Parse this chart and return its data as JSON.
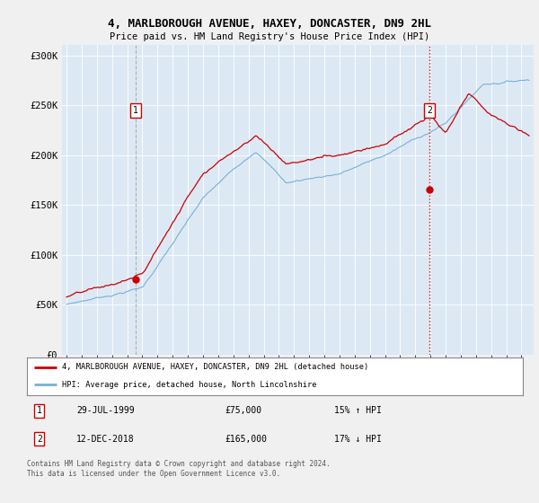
{
  "title": "4, MARLBOROUGH AVENUE, HAXEY, DONCASTER, DN9 2HL",
  "subtitle": "Price paid vs. HM Land Registry's House Price Index (HPI)",
  "legend_line1": "4, MARLBOROUGH AVENUE, HAXEY, DONCASTER, DN9 2HL (detached house)",
  "legend_line2": "HPI: Average price, detached house, North Lincolnshire",
  "annotation1_label": "1",
  "annotation1_date": "29-JUL-1999",
  "annotation1_price": "£75,000",
  "annotation1_hpi": "15% ↑ HPI",
  "annotation2_label": "2",
  "annotation2_date": "12-DEC-2018",
  "annotation2_price": "£165,000",
  "annotation2_hpi": "17% ↓ HPI",
  "footer": "Contains HM Land Registry data © Crown copyright and database right 2024.\nThis data is licensed under the Open Government Licence v3.0.",
  "hpi_color": "#7bafd4",
  "price_color": "#cc0000",
  "background_color": "#f0f0f0",
  "plot_bg_color": "#dce9f5",
  "plot_bg_color2": "#ffffff",
  "ylim": [
    0,
    310000
  ],
  "yticks": [
    0,
    50000,
    100000,
    150000,
    200000,
    250000,
    300000
  ],
  "ytick_labels": [
    "£0",
    "£50K",
    "£100K",
    "£150K",
    "£200K",
    "£250K",
    "£300K"
  ],
  "xlim_start": 1994.7,
  "xlim_end": 2025.8,
  "sale1_x": 1999.55,
  "sale1_y": 75000,
  "sale2_x": 2018.92,
  "sale2_y": 165000
}
